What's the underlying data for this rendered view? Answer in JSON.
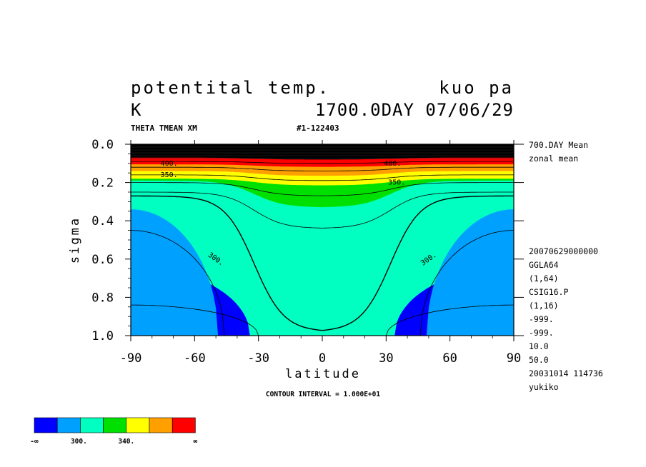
{
  "header": {
    "title_left": "potentital temp.",
    "title_right": "kuo pa",
    "units": "K",
    "time": "1700.0DAY 07/06/29",
    "var_name": "THETA TMEAN XM",
    "run_id": "#1-122403"
  },
  "side_info": {
    "mean_lines": [
      "700.DAY Mean",
      "zonal mean"
    ],
    "meta_lines": [
      "20070629000000",
      "GGLA64",
      "(1,64)",
      "CSIG16.P",
      "(1,16)",
      "-999.",
      "-999.",
      "10.0",
      "50.0",
      "20031014 114736",
      "yukiko"
    ]
  },
  "footer": {
    "contour_interval": "CONTOUR INTERVAL = 1.000E+01"
  },
  "chart_data": {
    "type": "heatmap",
    "subtype": "filled-contour",
    "xlabel": "latitude",
    "ylabel": "sigma",
    "xlim": [
      -90,
      90
    ],
    "ylim": [
      1.0,
      0.0
    ],
    "xticks": [
      "-90",
      "-60",
      "-30",
      "0",
      "30",
      "60",
      "90"
    ],
    "xtick_values": [
      -90,
      -60,
      -30,
      0,
      30,
      60,
      90
    ],
    "yticks": [
      "0.0",
      "0.2",
      "0.4",
      "0.6",
      "0.8",
      "1.0"
    ],
    "ytick_values": [
      0.0,
      0.2,
      0.4,
      0.6,
      0.8,
      1.0
    ],
    "contour_interval": 10,
    "contour_labels": [
      {
        "text": "300.",
        "lat": -50,
        "sigma": 0.6
      },
      {
        "text": "300.",
        "lat": 50,
        "sigma": 0.6
      },
      {
        "text": "350.",
        "lat": -72,
        "sigma": 0.16
      },
      {
        "text": "350.",
        "lat": 35,
        "sigma": 0.2
      },
      {
        "text": "400.",
        "lat": -72,
        "sigma": 0.1
      },
      {
        "text": "400.",
        "lat": 33,
        "sigma": 0.1
      }
    ],
    "colorbar": {
      "colors": [
        "#0000ff",
        "#00a0ff",
        "#00ffc0",
        "#00e000",
        "#ffff00",
        "#ffa000",
        "#ff0000"
      ],
      "labels": [
        "-∞",
        "300.",
        "340.",
        "∞"
      ]
    },
    "bands": [
      {
        "color": "#0000ff",
        "edge": {
          "equator": 1.0,
          "polar": 0.64,
          "w": 56
        }
      },
      {
        "color": "#00a0ff",
        "edge": {
          "equator": 1.0,
          "polar": 0.34,
          "w": 41
        }
      },
      {
        "color": "#00ffc0",
        "edge": {
          "equator": 0.56,
          "polar": 0.19,
          "w": 27
        }
      },
      {
        "color": "#00e000",
        "edge": {
          "equator": 0.33,
          "polar": 0.19,
          "w": 19
        }
      },
      {
        "color": "#ffff00",
        "edge": {
          "equator": 0.215,
          "polar": 0.18,
          "w": 22
        }
      },
      {
        "color": "#ffa000",
        "edge": {
          "equator": 0.165,
          "polar": 0.14,
          "w": 30
        }
      },
      {
        "color": "#ff0000",
        "edge": {
          "equator": 0.118,
          "polar": 0.105,
          "w": 30
        }
      },
      {
        "color": "#000000",
        "edge": {
          "equator": 0.08,
          "polar": 0.07,
          "w": 30
        }
      }
    ],
    "contours": [
      {
        "equator": 1.0,
        "polar": 0.84,
        "w": 60
      },
      {
        "equator": 1.0,
        "polar": 0.45,
        "w": 44
      },
      {
        "equator": 0.98,
        "polar": 0.27,
        "w": 30
      },
      {
        "equator": 0.44,
        "polar": 0.25,
        "w": 24
      },
      {
        "equator": 0.27,
        "polar": 0.2,
        "w": 20
      },
      {
        "equator": 0.19,
        "polar": 0.16,
        "w": 25
      },
      {
        "equator": 0.14,
        "polar": 0.12,
        "w": 30
      },
      {
        "equator": 0.1,
        "polar": 0.09,
        "w": 30
      }
    ]
  }
}
